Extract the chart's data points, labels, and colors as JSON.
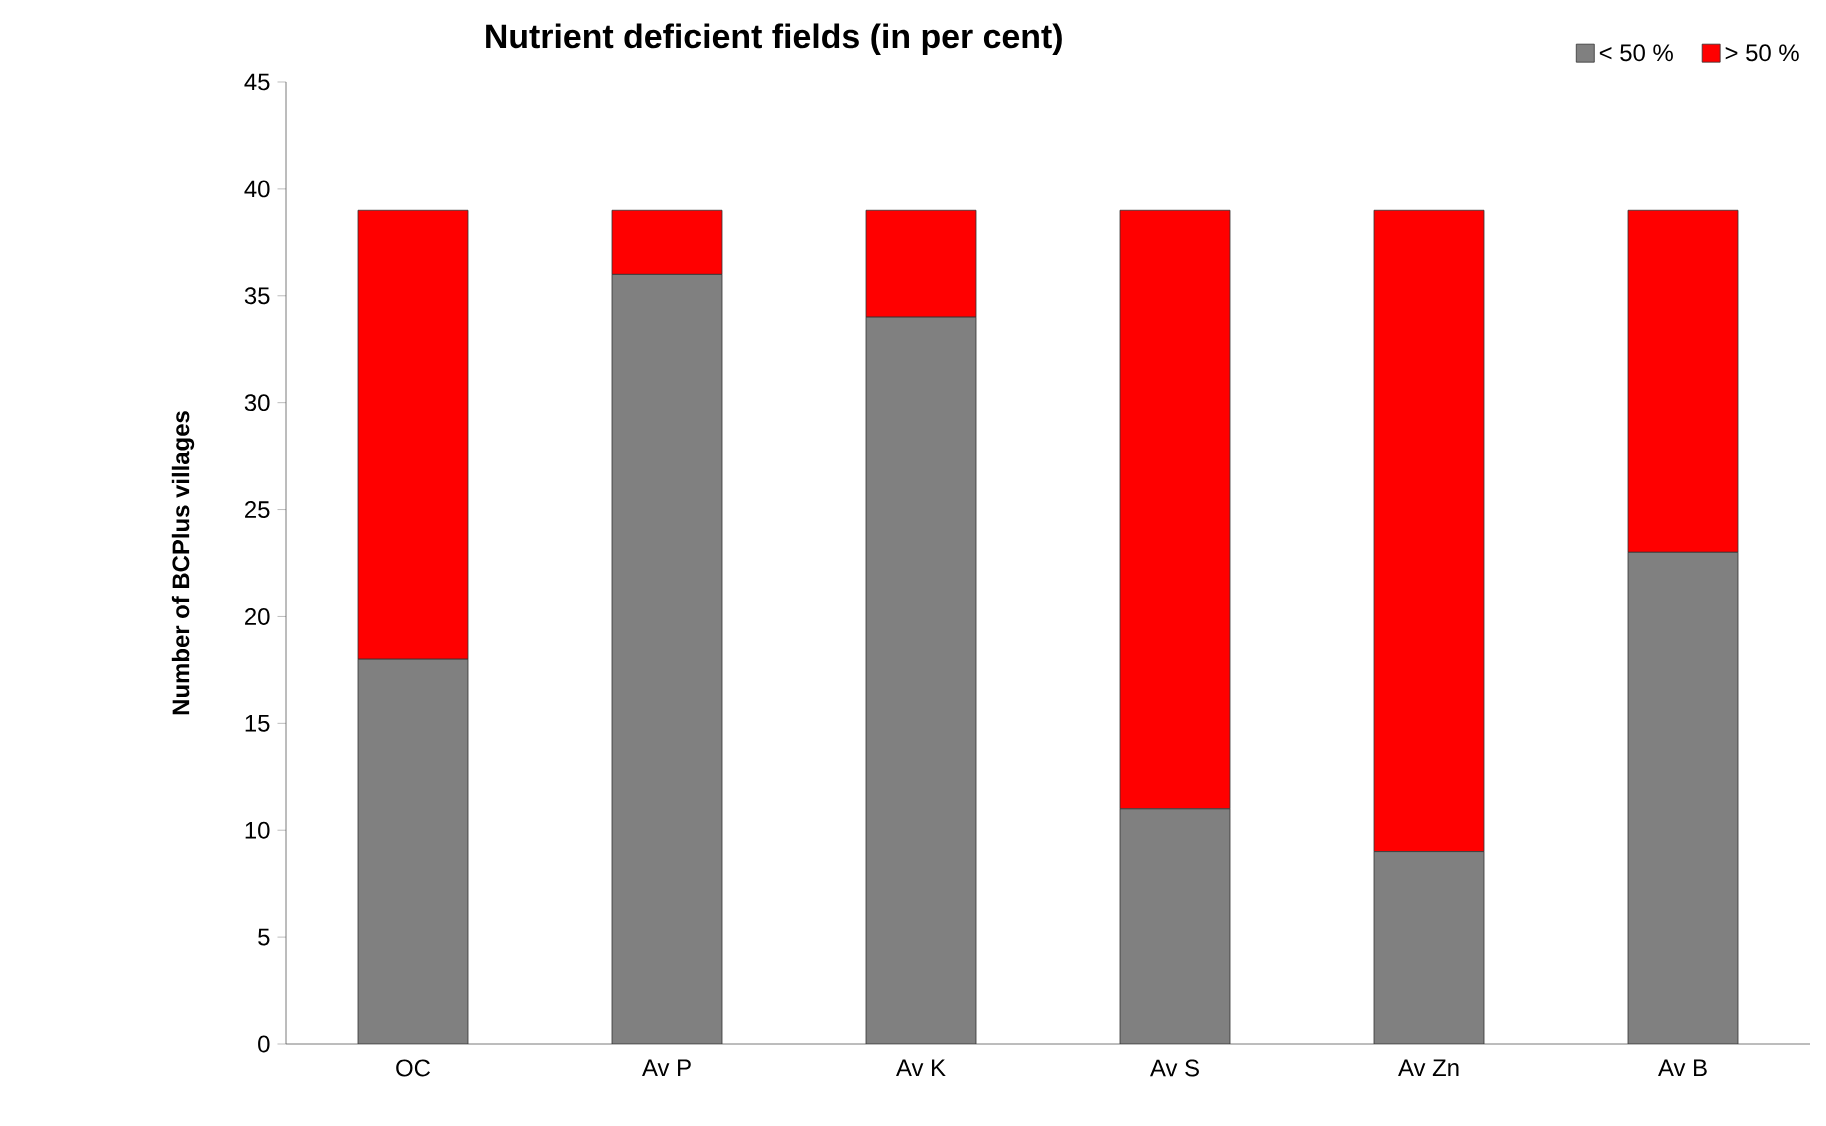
{
  "chart_data": {
    "type": "bar",
    "stacked": true,
    "title": "Nutrient deficient fields (in per cent)",
    "ylabel": "Number of BCPlus villages",
    "categories": [
      "OC",
      "Av P",
      "Av K",
      "Av S",
      "Av Zn",
      "Av B"
    ],
    "series": [
      {
        "name": "< 50 %",
        "color": "#808080",
        "values": [
          18,
          36,
          34,
          11,
          9,
          23
        ]
      },
      {
        "name": "> 50 %",
        "color": "#ff0000",
        "values": [
          21,
          3,
          5,
          28,
          30,
          16
        ]
      }
    ],
    "ylim": [
      0,
      45
    ],
    "yticks": [
      0,
      5,
      10,
      15,
      20,
      25,
      30,
      35,
      40,
      45
    ],
    "grid": false,
    "legend": "top right"
  }
}
